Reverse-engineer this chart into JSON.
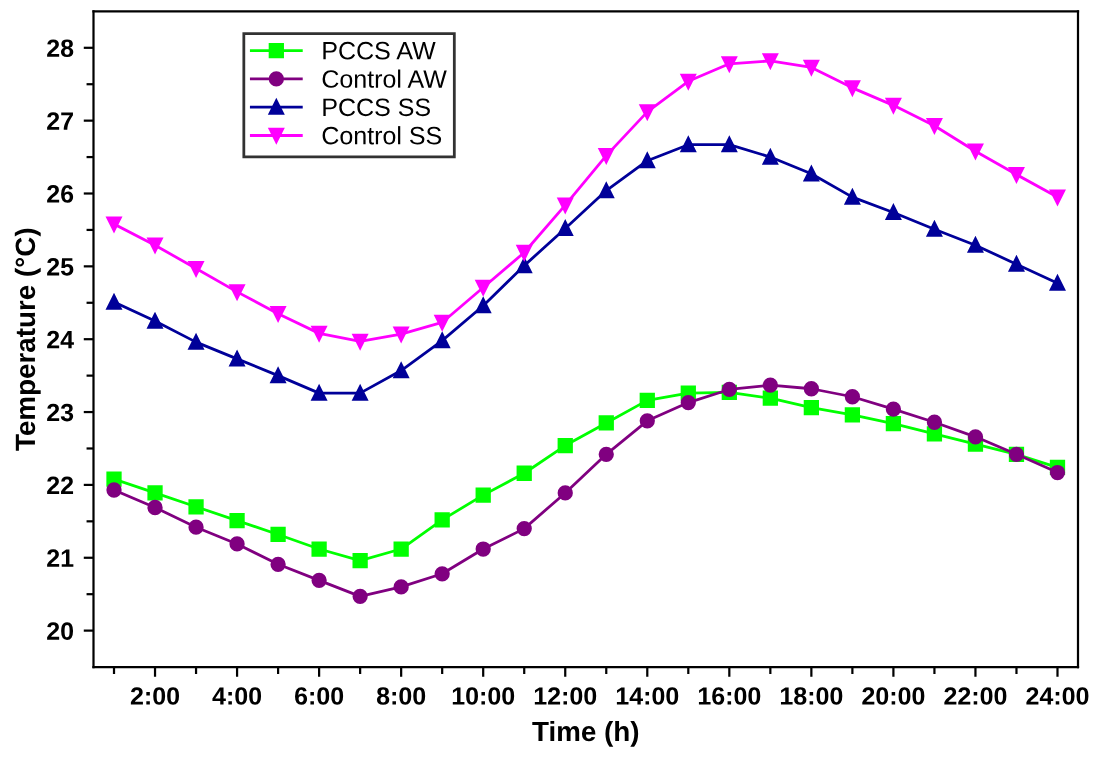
{
  "chart_data": {
    "type": "line",
    "xlabel": "Time (h)",
    "ylabel": "Temperature (°C)",
    "x": [
      1,
      2,
      3,
      4,
      5,
      6,
      7,
      8,
      9,
      10,
      11,
      12,
      13,
      14,
      15,
      16,
      17,
      18,
      19,
      20,
      21,
      22,
      23,
      24
    ],
    "xlim": [
      0.5,
      24.5
    ],
    "xticks": [
      {
        "value": 1,
        "label": null
      },
      {
        "value": 2,
        "label": "2:00"
      },
      {
        "value": 3,
        "label": null
      },
      {
        "value": 4,
        "label": "4:00"
      },
      {
        "value": 5,
        "label": null
      },
      {
        "value": 6,
        "label": "6:00"
      },
      {
        "value": 7,
        "label": null
      },
      {
        "value": 8,
        "label": "8:00"
      },
      {
        "value": 9,
        "label": null
      },
      {
        "value": 10,
        "label": "10:00"
      },
      {
        "value": 11,
        "label": null
      },
      {
        "value": 12,
        "label": "12:00"
      },
      {
        "value": 13,
        "label": null
      },
      {
        "value": 14,
        "label": "14:00"
      },
      {
        "value": 15,
        "label": null
      },
      {
        "value": 16,
        "label": "16:00"
      },
      {
        "value": 17,
        "label": null
      },
      {
        "value": 18,
        "label": "18:00"
      },
      {
        "value": 19,
        "label": null
      },
      {
        "value": 20,
        "label": "20:00"
      },
      {
        "value": 21,
        "label": null
      },
      {
        "value": 22,
        "label": "22:00"
      },
      {
        "value": 23,
        "label": null
      },
      {
        "value": 24,
        "label": "24:00"
      }
    ],
    "ylim": [
      19.5,
      28.5
    ],
    "yticks": [
      20,
      {
        "value": 20.5,
        "label": null
      },
      21,
      {
        "value": 21.5,
        "label": null
      },
      22,
      {
        "value": 22.5,
        "label": null
      },
      23,
      {
        "value": 23.5,
        "label": null
      },
      24,
      {
        "value": 24.5,
        "label": null
      },
      25,
      {
        "value": 25.5,
        "label": null
      },
      26,
      {
        "value": 26.5,
        "label": null
      },
      27,
      {
        "value": 27.5,
        "label": null
      },
      28
    ],
    "grid": false,
    "legend": "top left",
    "line_style": "solid",
    "series": [
      {
        "name": "PCCS AW",
        "color": "#00ff00",
        "marker": "square",
        "values": [
          22.08,
          21.89,
          21.7,
          21.51,
          21.32,
          21.12,
          20.96,
          21.12,
          21.52,
          21.86,
          22.16,
          22.54,
          22.85,
          23.16,
          23.26,
          23.27,
          23.19,
          23.06,
          22.96,
          22.84,
          22.7,
          22.56,
          22.42,
          22.24
        ]
      },
      {
        "name": "Control AW",
        "color": "#800080",
        "marker": "circle",
        "values": [
          21.93,
          21.69,
          21.42,
          21.19,
          20.91,
          20.69,
          20.47,
          20.6,
          20.78,
          21.12,
          21.4,
          21.89,
          22.42,
          22.88,
          23.13,
          23.31,
          23.37,
          23.32,
          23.21,
          23.04,
          22.86,
          22.66,
          22.42,
          22.17
        ]
      },
      {
        "name": "PCCS SS",
        "color": "#000099",
        "marker": "triangle",
        "values": [
          24.51,
          24.25,
          23.96,
          23.73,
          23.5,
          23.26,
          23.26,
          23.57,
          23.98,
          24.46,
          25.01,
          25.52,
          26.04,
          26.45,
          26.67,
          26.67,
          26.5,
          26.27,
          25.95,
          25.74,
          25.51,
          25.29,
          25.03,
          24.77
        ]
      },
      {
        "name": "Control SS",
        "color": "#ff00ff",
        "marker": "triangle_down",
        "values": [
          25.58,
          25.29,
          24.97,
          24.65,
          24.35,
          24.08,
          23.97,
          24.07,
          24.23,
          24.71,
          25.19,
          25.84,
          26.52,
          27.12,
          27.54,
          27.78,
          27.82,
          27.73,
          27.45,
          27.21,
          26.93,
          26.58,
          26.26,
          25.95
        ]
      }
    ]
  }
}
